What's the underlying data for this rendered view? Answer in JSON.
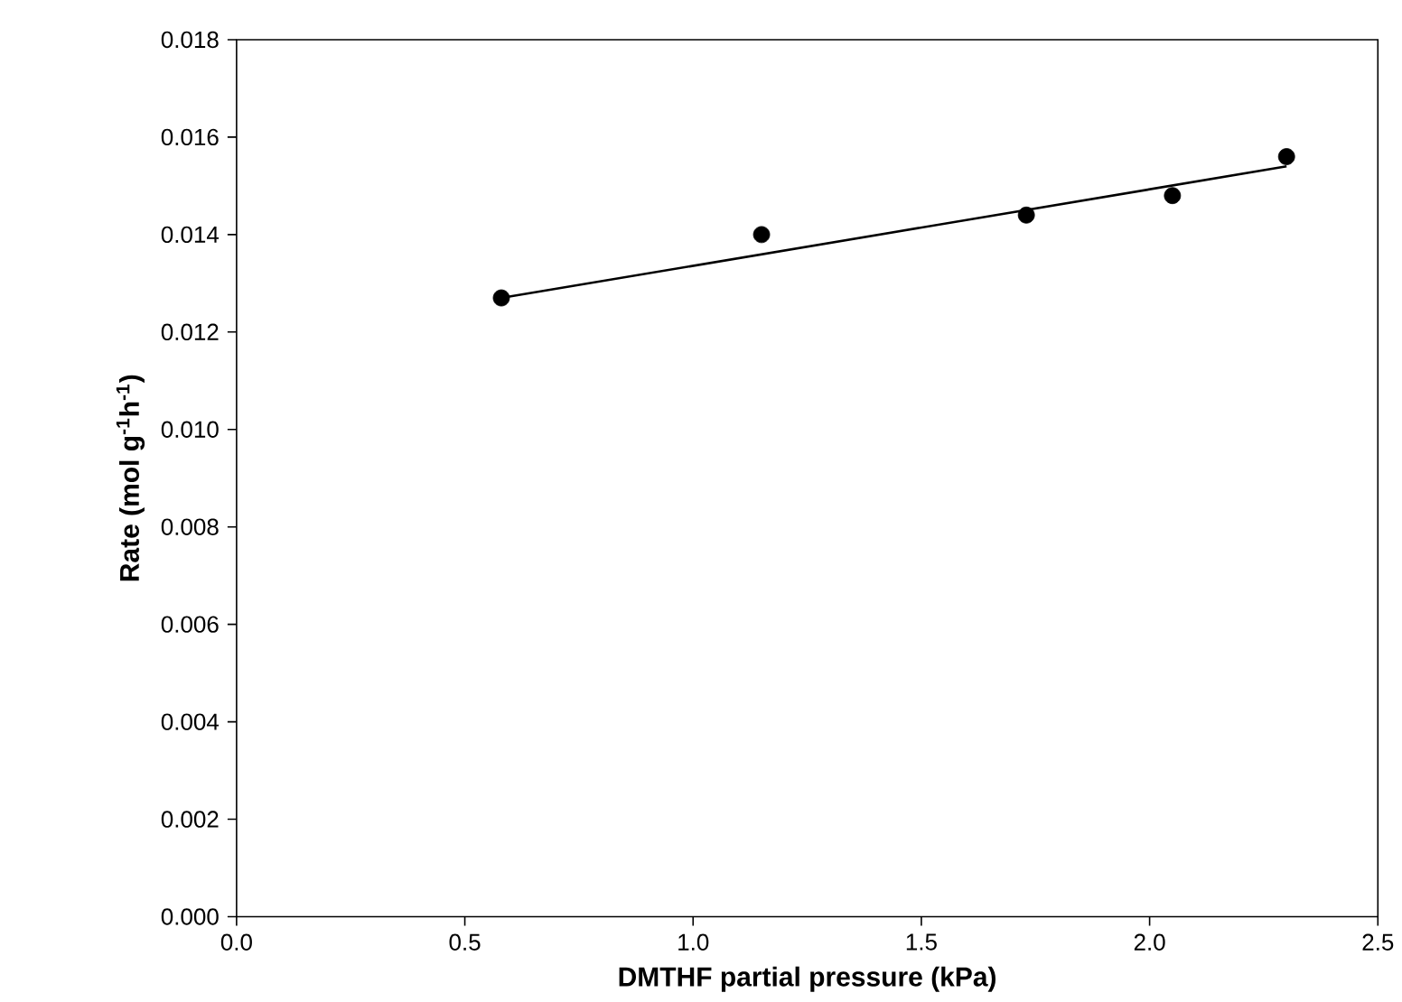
{
  "chart_data": {
    "type": "scatter",
    "xlabel": "DMTHF partial pressure (kPa)",
    "ylabel": "Rate (mol g$^{-1}$h$^{-1}$)",
    "series": [
      {
        "color": "#000000",
        "marker": "circle",
        "x": [
          0.58,
          1.15,
          1.73,
          2.05,
          2.3
        ],
        "values": [
          0.0127,
          0.014,
          0.0144,
          0.0148,
          0.0156
        ]
      },
      {
        "type": "line",
        "color": "#000000",
        "marker": "none",
        "x": [
          0.58,
          2.3
        ],
        "values": [
          0.0127,
          0.0154
        ]
      }
    ],
    "xlim": [
      0,
      2.5
    ],
    "xticks": [
      {
        "value": 0,
        "label": "0.0"
      },
      {
        "value": 0.5,
        "label": "0.5"
      },
      {
        "value": 1,
        "label": "1.0"
      },
      {
        "value": 1.5,
        "label": "1.5"
      },
      {
        "value": 2,
        "label": "2.0"
      },
      {
        "value": 2.5,
        "label": "2.5"
      }
    ],
    "ylim": [
      0,
      0.018
    ],
    "yticks": [
      {
        "value": 0,
        "label": "0.000"
      },
      {
        "value": 0.002,
        "label": "0.002"
      },
      {
        "value": 0.004,
        "label": "0.004"
      },
      {
        "value": 0.006,
        "label": "0.006"
      },
      {
        "value": 0.008,
        "label": "0.008"
      },
      {
        "value": 0.01,
        "label": "0.010"
      },
      {
        "value": 0.012,
        "label": "0.012"
      },
      {
        "value": 0.014,
        "label": "0.014"
      },
      {
        "value": 0.016,
        "label": "0.016"
      },
      {
        "value": 0.018,
        "label": "0.018"
      }
    ],
    "grid": false
  }
}
